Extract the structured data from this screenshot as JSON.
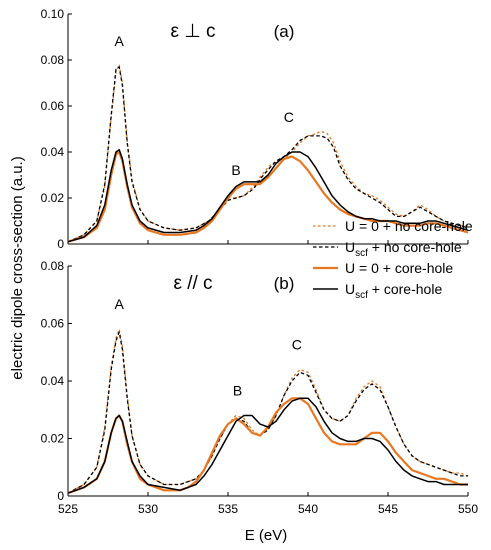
{
  "chart_data": [
    {
      "type": "line",
      "panel_label": "(a)",
      "title": "ε ⊥ c",
      "xlim": [
        525,
        550
      ],
      "ylim": [
        0,
        0.1
      ],
      "xticks": [
        "525",
        "530",
        "535",
        "540",
        "545",
        "550"
      ],
      "yticks": [
        "0",
        "0.02",
        "0.04",
        "0.06",
        "0.08",
        "0.10"
      ],
      "annotations": [
        {
          "text": "A",
          "x": 528.2,
          "y": 0.086
        },
        {
          "text": "B",
          "x": 535.5,
          "y": 0.03
        },
        {
          "text": "C",
          "x": 538.8,
          "y": 0.053
        }
      ],
      "series": [
        {
          "name": "U = 0 + no core-hole",
          "color": "#e87722",
          "style": "dotted",
          "x": [
            525.0,
            526.0,
            526.8,
            527.3,
            527.7,
            528.0,
            528.2,
            528.4,
            528.7,
            529.0,
            529.5,
            530.0,
            531.0,
            532.0,
            533.0,
            533.8,
            534.5,
            535.0,
            535.5,
            536.0,
            536.6,
            537.1,
            537.6,
            538.0,
            538.5,
            539.0,
            539.5,
            540.0,
            540.5,
            540.8,
            541.2,
            541.6,
            542.0,
            542.5,
            543.0,
            543.5,
            544.0,
            544.5,
            545.0,
            545.5,
            546.0,
            546.5,
            547.0,
            547.5,
            548.0,
            548.5,
            549.0,
            549.5,
            550.0
          ],
          "y": [
            0.001,
            0.004,
            0.01,
            0.025,
            0.055,
            0.075,
            0.078,
            0.07,
            0.045,
            0.028,
            0.015,
            0.01,
            0.007,
            0.006,
            0.007,
            0.01,
            0.015,
            0.02,
            0.02,
            0.021,
            0.025,
            0.03,
            0.034,
            0.036,
            0.037,
            0.04,
            0.044,
            0.047,
            0.048,
            0.049,
            0.048,
            0.044,
            0.036,
            0.029,
            0.025,
            0.022,
            0.021,
            0.019,
            0.016,
            0.013,
            0.012,
            0.014,
            0.017,
            0.015,
            0.012,
            0.01,
            0.009,
            0.008,
            0.008
          ]
        },
        {
          "name": "U_scf + no core-hole",
          "color": "#000000",
          "style": "dashed",
          "x": [
            525.0,
            526.0,
            526.8,
            527.3,
            527.7,
            528.0,
            528.2,
            528.4,
            528.7,
            529.0,
            529.5,
            530.0,
            531.0,
            532.0,
            533.0,
            533.8,
            534.5,
            535.0,
            535.5,
            536.0,
            536.6,
            537.1,
            537.6,
            538.0,
            538.5,
            539.0,
            539.5,
            540.0,
            540.5,
            540.8,
            541.2,
            541.6,
            542.0,
            542.5,
            543.0,
            543.5,
            544.0,
            544.5,
            545.0,
            545.5,
            546.0,
            546.5,
            547.0,
            547.5,
            548.0,
            548.5,
            549.0,
            549.5,
            550.0
          ],
          "y": [
            0.001,
            0.004,
            0.01,
            0.026,
            0.056,
            0.076,
            0.077,
            0.069,
            0.044,
            0.027,
            0.015,
            0.01,
            0.007,
            0.006,
            0.007,
            0.01,
            0.015,
            0.019,
            0.02,
            0.021,
            0.024,
            0.029,
            0.033,
            0.036,
            0.038,
            0.041,
            0.045,
            0.047,
            0.047,
            0.047,
            0.046,
            0.042,
            0.034,
            0.028,
            0.024,
            0.022,
            0.02,
            0.018,
            0.015,
            0.012,
            0.012,
            0.014,
            0.016,
            0.014,
            0.012,
            0.01,
            0.009,
            0.008,
            0.007
          ]
        },
        {
          "name": "U = 0 + core-hole",
          "color": "#e87722",
          "style": "solid",
          "x": [
            525.0,
            526.0,
            526.8,
            527.3,
            527.7,
            528.0,
            528.2,
            528.4,
            528.7,
            529.0,
            529.5,
            530.0,
            531.0,
            532.0,
            533.0,
            533.5,
            534.0,
            534.5,
            535.0,
            535.5,
            536.0,
            536.5,
            537.0,
            537.5,
            538.0,
            538.5,
            539.0,
            539.5,
            540.0,
            540.5,
            541.0,
            541.5,
            542.0,
            542.5,
            543.0,
            543.5,
            544.0,
            544.5,
            545.0,
            545.5,
            546.0,
            546.5,
            547.0,
            547.5,
            548.0,
            548.5,
            549.0,
            549.5,
            550.0
          ],
          "y": [
            0.001,
            0.003,
            0.007,
            0.015,
            0.03,
            0.039,
            0.04,
            0.036,
            0.025,
            0.016,
            0.009,
            0.006,
            0.004,
            0.004,
            0.005,
            0.007,
            0.01,
            0.015,
            0.02,
            0.024,
            0.026,
            0.026,
            0.026,
            0.029,
            0.033,
            0.037,
            0.038,
            0.036,
            0.032,
            0.027,
            0.022,
            0.018,
            0.015,
            0.013,
            0.012,
            0.011,
            0.01,
            0.01,
            0.01,
            0.009,
            0.008,
            0.008,
            0.008,
            0.009,
            0.009,
            0.008,
            0.007,
            0.006,
            0.005
          ]
        },
        {
          "name": "U_scf + core-hole",
          "color": "#000000",
          "style": "solid",
          "x": [
            525.0,
            526.0,
            526.8,
            527.3,
            527.7,
            528.0,
            528.2,
            528.4,
            528.7,
            529.0,
            529.5,
            530.0,
            531.0,
            532.0,
            533.0,
            533.5,
            534.0,
            534.5,
            535.0,
            535.5,
            536.0,
            536.5,
            537.0,
            537.5,
            538.0,
            538.5,
            539.0,
            539.5,
            540.0,
            540.5,
            541.0,
            541.5,
            542.0,
            542.5,
            543.0,
            543.5,
            544.0,
            544.5,
            545.0,
            545.5,
            546.0,
            546.5,
            547.0,
            547.5,
            548.0,
            548.5,
            549.0,
            549.5,
            550.0
          ],
          "y": [
            0.001,
            0.003,
            0.008,
            0.017,
            0.032,
            0.04,
            0.041,
            0.037,
            0.026,
            0.017,
            0.01,
            0.007,
            0.005,
            0.005,
            0.006,
            0.008,
            0.011,
            0.016,
            0.021,
            0.025,
            0.027,
            0.027,
            0.027,
            0.03,
            0.035,
            0.038,
            0.04,
            0.04,
            0.038,
            0.033,
            0.027,
            0.021,
            0.017,
            0.014,
            0.012,
            0.011,
            0.011,
            0.01,
            0.01,
            0.01,
            0.009,
            0.009,
            0.009,
            0.01,
            0.01,
            0.009,
            0.008,
            0.007,
            0.006
          ]
        }
      ]
    },
    {
      "type": "line",
      "panel_label": "(b)",
      "title": "ε // c",
      "xlim": [
        525,
        550
      ],
      "ylim": [
        0,
        0.08
      ],
      "xticks": [
        "525",
        "530",
        "535",
        "540",
        "545",
        "550"
      ],
      "yticks": [
        "0",
        "0.02",
        "0.04",
        "0.06",
        "0.08"
      ],
      "xlabel": "E (eV)",
      "annotations": [
        {
          "text": "A",
          "x": 528.2,
          "y": 0.065
        },
        {
          "text": "B",
          "x": 535.6,
          "y": 0.035
        },
        {
          "text": "C",
          "x": 539.3,
          "y": 0.051
        }
      ],
      "series": [
        {
          "name": "U = 0 + no core-hole",
          "color": "#e87722",
          "style": "dotted",
          "x": [
            525.0,
            526.0,
            526.8,
            527.3,
            527.7,
            528.0,
            528.2,
            528.4,
            528.7,
            529.0,
            529.5,
            530.0,
            531.0,
            532.0,
            533.0,
            533.5,
            534.0,
            534.5,
            535.0,
            535.5,
            536.0,
            536.5,
            537.0,
            537.5,
            538.0,
            538.5,
            539.0,
            539.5,
            540.0,
            540.5,
            541.0,
            541.5,
            542.0,
            542.5,
            543.0,
            543.5,
            544.0,
            544.5,
            545.0,
            545.5,
            546.0,
            546.5,
            547.0,
            547.5,
            548.0,
            548.5,
            549.0,
            549.5,
            550.0
          ],
          "y": [
            0.001,
            0.004,
            0.01,
            0.024,
            0.045,
            0.055,
            0.058,
            0.052,
            0.035,
            0.021,
            0.011,
            0.007,
            0.004,
            0.004,
            0.006,
            0.009,
            0.014,
            0.02,
            0.025,
            0.028,
            0.027,
            0.023,
            0.021,
            0.023,
            0.028,
            0.035,
            0.041,
            0.044,
            0.043,
            0.037,
            0.03,
            0.027,
            0.026,
            0.028,
            0.034,
            0.038,
            0.04,
            0.038,
            0.031,
            0.024,
            0.018,
            0.014,
            0.012,
            0.011,
            0.01,
            0.009,
            0.008,
            0.008,
            0.007
          ]
        },
        {
          "name": "U_scf + no core-hole",
          "color": "#000000",
          "style": "dashed",
          "x": [
            525.0,
            526.0,
            526.8,
            527.3,
            527.7,
            528.0,
            528.2,
            528.4,
            528.7,
            529.0,
            529.5,
            530.0,
            531.0,
            532.0,
            533.0,
            533.5,
            534.0,
            534.5,
            535.0,
            535.5,
            536.0,
            536.5,
            537.0,
            537.5,
            538.0,
            538.5,
            539.0,
            539.5,
            540.0,
            540.5,
            541.0,
            541.5,
            542.0,
            542.5,
            543.0,
            543.5,
            544.0,
            544.5,
            545.0,
            545.5,
            546.0,
            546.5,
            547.0,
            547.5,
            548.0,
            548.5,
            549.0,
            549.5,
            550.0
          ],
          "y": [
            0.001,
            0.004,
            0.01,
            0.023,
            0.044,
            0.054,
            0.057,
            0.051,
            0.034,
            0.021,
            0.011,
            0.007,
            0.004,
            0.004,
            0.006,
            0.009,
            0.014,
            0.02,
            0.025,
            0.027,
            0.026,
            0.022,
            0.021,
            0.023,
            0.028,
            0.035,
            0.04,
            0.043,
            0.042,
            0.036,
            0.03,
            0.027,
            0.026,
            0.028,
            0.033,
            0.037,
            0.039,
            0.037,
            0.031,
            0.024,
            0.018,
            0.014,
            0.012,
            0.011,
            0.01,
            0.009,
            0.008,
            0.007,
            0.007
          ]
        },
        {
          "name": "U = 0 + core-hole",
          "color": "#e87722",
          "style": "solid",
          "x": [
            525.0,
            526.0,
            526.8,
            527.3,
            527.7,
            528.0,
            528.2,
            528.4,
            528.7,
            529.0,
            529.5,
            530.0,
            531.0,
            532.0,
            532.5,
            533.0,
            533.5,
            534.0,
            534.5,
            535.0,
            535.5,
            536.0,
            536.5,
            537.0,
            537.5,
            538.0,
            538.5,
            539.0,
            539.5,
            540.0,
            540.5,
            541.0,
            541.5,
            542.0,
            542.5,
            543.0,
            543.5,
            544.0,
            544.5,
            545.0,
            545.5,
            546.0,
            546.5,
            547.0,
            547.5,
            548.0,
            548.5,
            549.0,
            549.5,
            550.0
          ],
          "y": [
            0.001,
            0.003,
            0.006,
            0.012,
            0.022,
            0.027,
            0.028,
            0.026,
            0.018,
            0.012,
            0.006,
            0.004,
            0.002,
            0.002,
            0.003,
            0.005,
            0.009,
            0.015,
            0.021,
            0.025,
            0.027,
            0.025,
            0.022,
            0.021,
            0.024,
            0.029,
            0.032,
            0.034,
            0.034,
            0.032,
            0.027,
            0.022,
            0.019,
            0.018,
            0.018,
            0.018,
            0.02,
            0.022,
            0.022,
            0.019,
            0.015,
            0.012,
            0.009,
            0.008,
            0.007,
            0.006,
            0.006,
            0.005,
            0.004,
            0.004
          ]
        },
        {
          "name": "U_scf + core-hole",
          "color": "#000000",
          "style": "solid",
          "x": [
            525.0,
            526.0,
            526.8,
            527.3,
            527.7,
            528.0,
            528.2,
            528.4,
            528.7,
            529.0,
            529.5,
            530.0,
            531.0,
            532.0,
            532.5,
            533.0,
            533.5,
            534.0,
            534.5,
            535.0,
            535.5,
            536.0,
            536.5,
            537.0,
            537.5,
            538.0,
            538.5,
            539.0,
            539.5,
            540.0,
            540.5,
            541.0,
            541.5,
            542.0,
            542.5,
            543.0,
            543.5,
            544.0,
            544.5,
            545.0,
            545.5,
            546.0,
            546.5,
            547.0,
            547.5,
            548.0,
            548.5,
            549.0,
            549.5,
            550.0
          ],
          "y": [
            0.001,
            0.003,
            0.006,
            0.012,
            0.022,
            0.027,
            0.028,
            0.026,
            0.019,
            0.012,
            0.007,
            0.004,
            0.003,
            0.002,
            0.003,
            0.004,
            0.007,
            0.011,
            0.016,
            0.021,
            0.026,
            0.028,
            0.028,
            0.025,
            0.024,
            0.026,
            0.03,
            0.033,
            0.034,
            0.034,
            0.031,
            0.026,
            0.022,
            0.02,
            0.019,
            0.019,
            0.02,
            0.02,
            0.019,
            0.016,
            0.012,
            0.009,
            0.007,
            0.006,
            0.005,
            0.005,
            0.004,
            0.004,
            0.004,
            0.004
          ]
        }
      ]
    }
  ],
  "ylabel": "electric dipole cross-section (a.u.)",
  "legend": [
    {
      "prefix": "U = 0",
      "sub": "",
      "suffix": " + no core-hole",
      "color": "#e87722",
      "style": "dotted"
    },
    {
      "prefix": "U",
      "sub": "scf",
      "suffix": " + no core-hole",
      "color": "#000000",
      "style": "dashed"
    },
    {
      "prefix": "U = 0",
      "sub": "",
      "suffix": " + core-hole",
      "color": "#e87722",
      "style": "solid"
    },
    {
      "prefix": "U",
      "sub": "scf",
      "suffix": " + core-hole",
      "color": "#000000",
      "style": "solid"
    }
  ]
}
